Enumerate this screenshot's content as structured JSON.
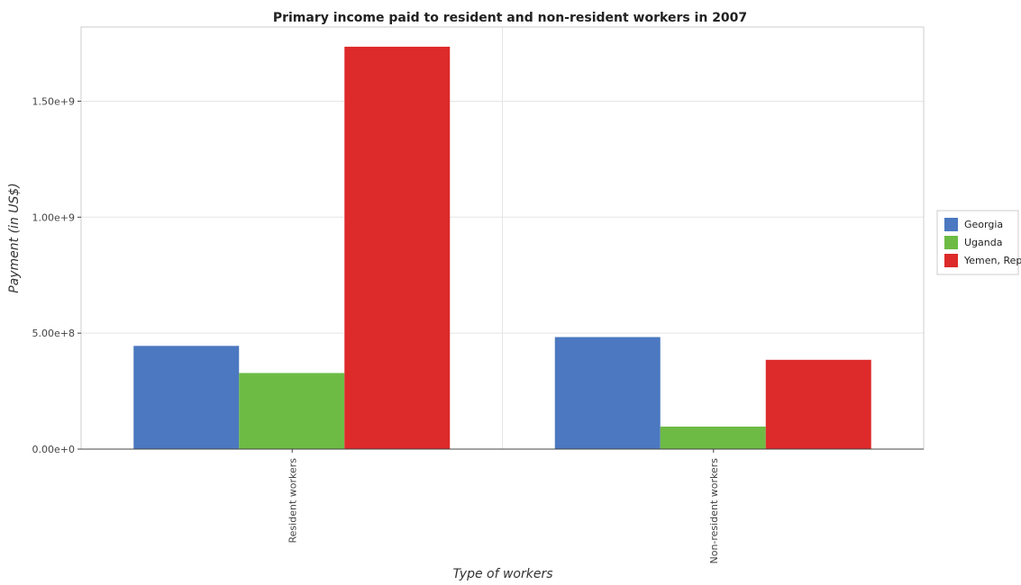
{
  "chart_data": {
    "type": "bar",
    "title": "Primary income paid to resident and non-resident workers in 2007",
    "xlabel": "Type of workers",
    "ylabel": "Payment (in US$)",
    "categories": [
      "Resident workers",
      "Non-resident workers"
    ],
    "series": [
      {
        "name": "Georgia",
        "color": "#4b78c0",
        "values": [
          445000000,
          483000000
        ]
      },
      {
        "name": "Uganda",
        "color": "#6dbb45",
        "values": [
          328000000,
          97000000
        ]
      },
      {
        "name": "Yemen, Rep.",
        "color": "#dd2a2a",
        "values": [
          1735000000,
          385000000
        ]
      }
    ],
    "yticks": [
      0,
      500000000,
      1000000000,
      1500000000
    ],
    "ytick_labels": [
      "0.00e+0",
      "5.00e+8",
      "1.00e+9",
      "1.50e+9"
    ],
    "ylim": [
      0,
      1820000000
    ],
    "grid": true,
    "legend_position": "right"
  }
}
